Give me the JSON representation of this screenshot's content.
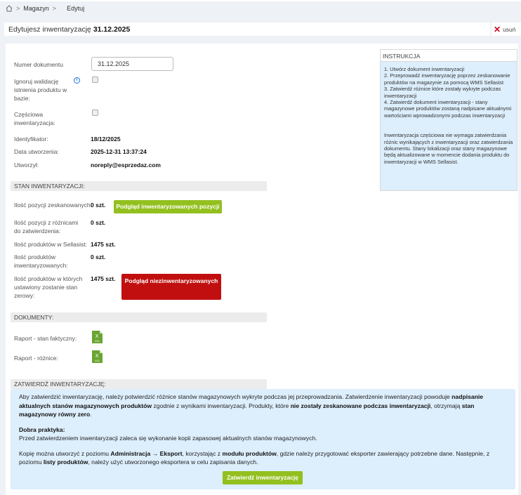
{
  "breadcrumb": {
    "items": [
      "Magazyn",
      "Edytuj"
    ]
  },
  "header": {
    "title_prefix": "Edytujesz inwentaryzację",
    "title_name": "31.12.2025",
    "delete_label": "usuń"
  },
  "form": {
    "doc_number_label": "Numer dokumentu",
    "doc_number_value": "31.12.2025",
    "ignore_validation_label": "Ignoruj walidację istnienia produktu w bazie:",
    "partial_label": "Częściowa inwentaryzacja:",
    "id_label": "Identyfikator:",
    "id_value": "18/12/2025",
    "created_label": "Data utworzenia:",
    "created_value": "2025-12-31 13:37:24",
    "author_label": "Utworzył:",
    "author_value": "noreply@esprzedaz.com"
  },
  "status": {
    "header": "STAN INWENTARYZACJI:",
    "rows": [
      {
        "label": "Ilość pozycji zeskanowanych:",
        "value": "0 szt."
      },
      {
        "label": "Ilość pozycji z różnicami do zatwierdzenia:",
        "value": "0 szt."
      },
      {
        "label": "Ilość produktów w Sellasist:",
        "value": "1475 szt."
      },
      {
        "label": "Ilość produktów inwentaryzowanych:",
        "value": "0 szt."
      },
      {
        "label": "Ilość produktów w których ustawiony zostanie stan zerowy:",
        "value": "1475 szt."
      }
    ],
    "preview_button": "Podgląd inwentaryzowanych pozycji",
    "uninventoried_button": "Podgląd niezinwentaryzowanych"
  },
  "documents": {
    "header": "DOKUMENTY:",
    "items": [
      {
        "label": "Raport - stan faktyczny:",
        "icon": "xls-file-icon"
      },
      {
        "label": "Raport - różnice:",
        "icon": "xls-file-icon"
      }
    ]
  },
  "instruction": {
    "title": "INSTRUKCJA",
    "steps": [
      "1. Utwórz dokument inwentaryzacji",
      "2. Przeprowadź inwentaryzację poprzez zeskanowanie produktów na magazynie za pomocą WMS Sellasist",
      "3. Zatwierdź różnice które zostały wykryte podczas inwentaryzacji",
      "4. Zatwierdź dokument inwentaryzacji - stany magazynowe produktów zostaną nadpisane aktualnymi wartościami wprowadzonymi podczas inwentaryzacji"
    ],
    "note": "Inwentaryzacja częściowa nie wymaga zatwierdzania różnic wynikających z inwentaryzacji oraz zatwierdzania dokumentu. Stany lokalizacji oraz stany magazynowe będą aktualizowane w momencie dodania produktu do inwentaryzacji w WMS Sellasist."
  },
  "confirm": {
    "header": "ZATWIERDŹ INWENTARYZACJĘ:",
    "p1": [
      "Aby zatwierdzić inwentaryzację, należy potwierdzić różnice stanów magazynowych wykryte podczas jej przeprowadzania. Zatwierdzenie inwentaryzacji powoduje ",
      "nadpisanie aktualnych stanów magazynowych produktów",
      " zgodnie z wynikami inwentaryzacji. Produkty, które ",
      "nie zostały zeskanowane podczas inwentaryzacji",
      ", otrzymają ",
      "stan magazynowy równy zero",
      "."
    ],
    "practice_title": "Dobra praktyka:",
    "practice_text": "Przed zatwierdzeniem inwentaryzacji zaleca się wykonanie kopii zapasowej aktualnych stanów magazynowych.",
    "p3": [
      "Kopię można utworzyć z poziomu ",
      "Administracja → Eksport",
      ", korzystając z ",
      "modułu produktów",
      ", gdzie należy przygotować eksporter zawierający potrzebne dane. Następnie, z poziomu ",
      "listy produktów",
      ", należy użyć utworzonego eksportera w celu zapisania danych."
    ],
    "button": "Zatwierdź inwentaryzację"
  },
  "colors": {
    "accent_green": "#93c01f",
    "danger_red": "#c10f0f",
    "info_bg": "#ddeefc"
  }
}
